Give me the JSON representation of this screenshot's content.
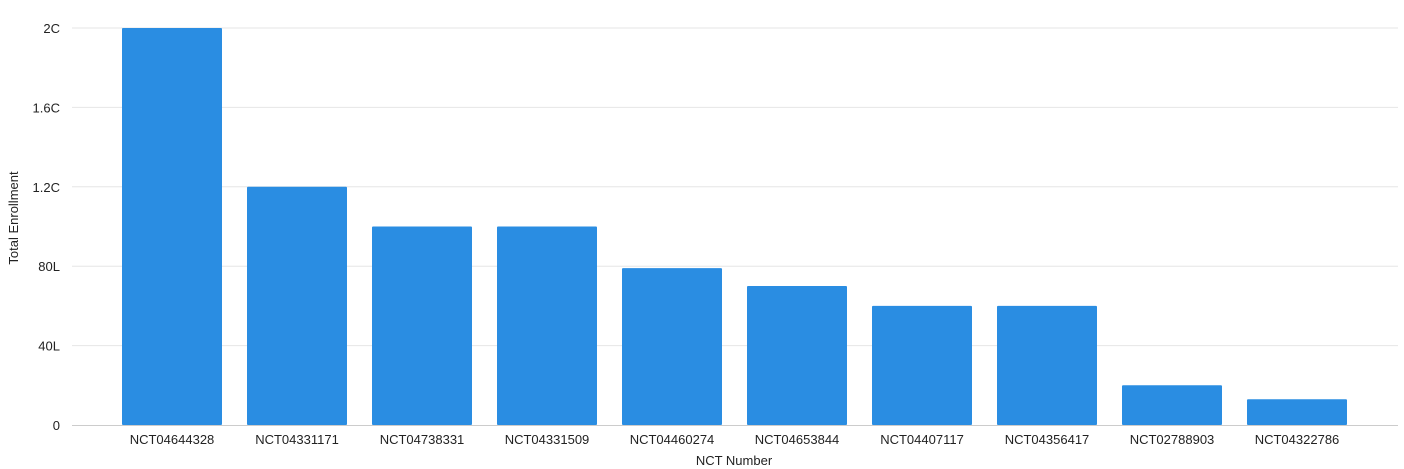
{
  "chart_data": {
    "type": "bar",
    "xlabel": "NCT Number",
    "ylabel": "Total Enrollment",
    "categories": [
      "NCT04644328",
      "NCT04331171",
      "NCT04738331",
      "NCT04331509",
      "NCT04460274",
      "NCT04653844",
      "NCT04407117",
      "NCT04356417",
      "NCT02788903",
      "NCT04322786"
    ],
    "values": [
      200,
      120,
      100,
      100,
      79,
      70,
      60,
      60,
      20,
      13
    ],
    "ylim": [
      0,
      200
    ],
    "yticks": [
      {
        "value": 0,
        "label": "0"
      },
      {
        "value": 40,
        "label": "40L"
      },
      {
        "value": 80,
        "label": "80L"
      },
      {
        "value": 120,
        "label": "1.2C"
      },
      {
        "value": 160,
        "label": "1.6C"
      },
      {
        "value": 200,
        "label": "2C"
      }
    ],
    "grid": true,
    "bar_color": "#2a8de2",
    "grid_color": "#e6e6e6",
    "axis_color": "#cccccc"
  }
}
